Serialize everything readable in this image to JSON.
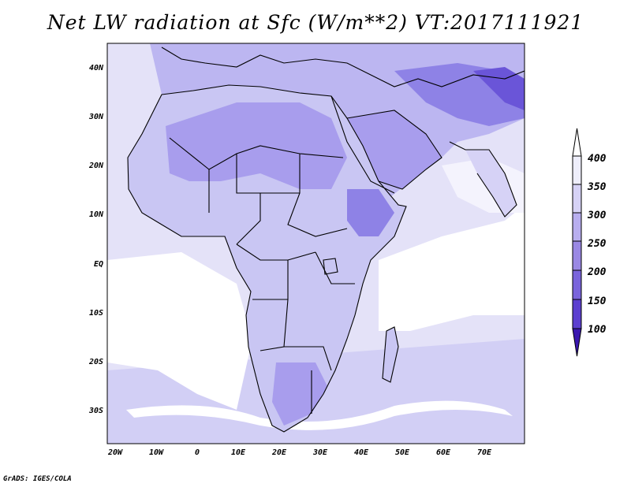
{
  "title": "Net LW radiation at Sfc (W/m**2) VT:2017111921",
  "credit": "GrADS: IGES/COLA",
  "x_ticks": [
    "20W",
    "10W",
    "0",
    "10E",
    "20E",
    "30E",
    "40E",
    "50E",
    "60E",
    "70E"
  ],
  "y_ticks": [
    "40N",
    "30N",
    "20N",
    "10N",
    "EQ",
    "10S",
    "20S",
    "30S"
  ],
  "colorbar": {
    "labels": [
      "100",
      "150",
      "200",
      "250",
      "300",
      "350",
      "400"
    ],
    "colors": [
      "#3a17b0",
      "#5c3fd0",
      "#7a64dc",
      "#9a88e4",
      "#b8aeef",
      "#d6d2f6",
      "#eeeefb"
    ]
  },
  "colors": {
    "ocean": "#ffffff",
    "land_base": "#c9c6f3",
    "sahara": "#a89ded",
    "high": "#8e82e6",
    "border": "#000000"
  }
}
